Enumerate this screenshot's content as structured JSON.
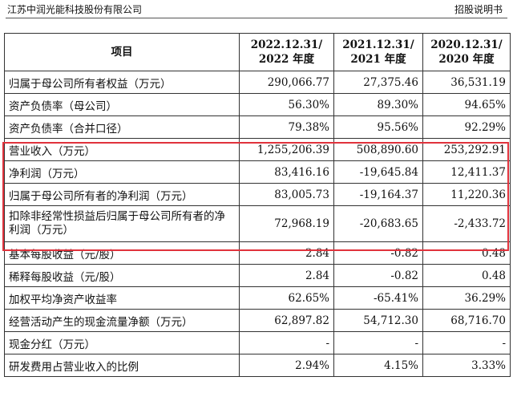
{
  "header": {
    "company": "江苏中润光能科技股份有限公司",
    "doc_type": "招股说明书"
  },
  "table": {
    "col_item": "项目",
    "col_2022_date": "2022.12.31/",
    "col_2022_year": "2022 年度",
    "col_2021_date": "2021.12.31/",
    "col_2021_year": "2021 年度",
    "col_2020_date": "2020.12.31/",
    "col_2020_year": "2020 年度",
    "rows": [
      {
        "label": "归属于母公司所有者权益（万元）",
        "v2022": "290,066.77",
        "v2021": "27,375.46",
        "v2020": "36,531.19"
      },
      {
        "label": "资产负债率（母公司）",
        "v2022": "56.30%",
        "v2021": "89.30%",
        "v2020": "94.65%"
      },
      {
        "label": "资产负债率（合并口径）",
        "v2022": "79.38%",
        "v2021": "95.56%",
        "v2020": "92.29%"
      },
      {
        "label": "营业收入（万元）",
        "v2022": "1,255,206.39",
        "v2021": "508,890.60",
        "v2020": "253,292.91"
      },
      {
        "label": "净利润（万元）",
        "v2022": "83,416.16",
        "v2021": "-19,645.84",
        "v2020": "12,411.37"
      },
      {
        "label": "归属于母公司所有者的净利润（万元）",
        "v2022": "83,005.73",
        "v2021": "-19,164.37",
        "v2020": "11,220.36"
      },
      {
        "label": "扣除非经常性损益后归属于母公司所有者的净利润（万元）",
        "v2022": "72,968.19",
        "v2021": "-20,683.65",
        "v2020": "-2,433.72"
      },
      {
        "label": "基本每股收益（元/股）",
        "v2022": "2.84",
        "v2021": "-0.82",
        "v2020": "0.48"
      },
      {
        "label": "稀释每股收益（元/股）",
        "v2022": "2.84",
        "v2021": "-0.82",
        "v2020": "0.48"
      },
      {
        "label": "加权平均净资产收益率",
        "v2022": "62.65%",
        "v2021": "-65.41%",
        "v2020": "36.29%"
      },
      {
        "label": "经营活动产生的现金流量净额（万元）",
        "v2022": "62,897.82",
        "v2021": "54,712.30",
        "v2020": "68,716.70"
      },
      {
        "label": "现金分红（万元）",
        "v2022": "-",
        "v2021": "-",
        "v2020": "-"
      },
      {
        "label": "研发费用占营业收入的比例",
        "v2022": "2.94%",
        "v2021": "4.15%",
        "v2020": "3.33%"
      }
    ]
  },
  "colors": {
    "highlight_border": "#e0323c"
  }
}
